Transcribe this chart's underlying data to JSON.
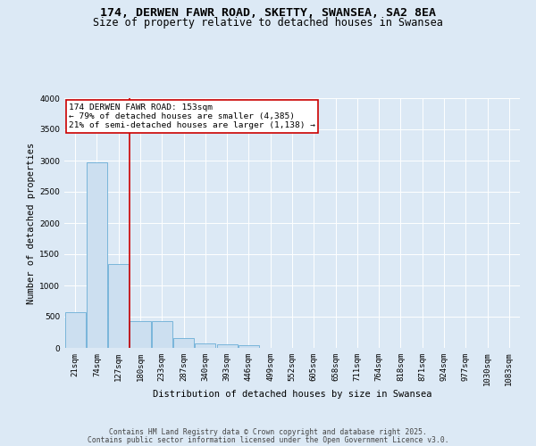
{
  "title_line1": "174, DERWEN FAWR ROAD, SKETTY, SWANSEA, SA2 8EA",
  "title_line2": "Size of property relative to detached houses in Swansea",
  "xlabel": "Distribution of detached houses by size in Swansea",
  "ylabel": "Number of detached properties",
  "categories": [
    "21sqm",
    "74sqm",
    "127sqm",
    "180sqm",
    "233sqm",
    "287sqm",
    "340sqm",
    "393sqm",
    "446sqm",
    "499sqm",
    "552sqm",
    "605sqm",
    "658sqm",
    "711sqm",
    "764sqm",
    "818sqm",
    "871sqm",
    "924sqm",
    "977sqm",
    "1030sqm",
    "1083sqm"
  ],
  "values": [
    575,
    2975,
    1340,
    430,
    430,
    155,
    75,
    60,
    45,
    0,
    0,
    0,
    0,
    0,
    0,
    0,
    0,
    0,
    0,
    0,
    0
  ],
  "bar_color": "#ccdff0",
  "bar_edge_color": "#6aaed6",
  "vline_x_index": 2,
  "vline_color": "#cc0000",
  "annotation_text": "174 DERWEN FAWR ROAD: 153sqm\n← 79% of detached houses are smaller (4,385)\n21% of semi-detached houses are larger (1,138) →",
  "annotation_box_color": "#cc0000",
  "annotation_bg": "#ffffff",
  "ylim": [
    0,
    4000
  ],
  "yticks": [
    0,
    500,
    1000,
    1500,
    2000,
    2500,
    3000,
    3500,
    4000
  ],
  "background_color": "#dce9f5",
  "plot_bg_color": "#dce9f5",
  "footer_line1": "Contains HM Land Registry data © Crown copyright and database right 2025.",
  "footer_line2": "Contains public sector information licensed under the Open Government Licence v3.0.",
  "grid_color": "#ffffff",
  "title_fontsize": 9.5,
  "subtitle_fontsize": 8.5,
  "axis_label_fontsize": 7.5,
  "tick_fontsize": 6.5,
  "annotation_fontsize": 6.8,
  "footer_fontsize": 5.8
}
